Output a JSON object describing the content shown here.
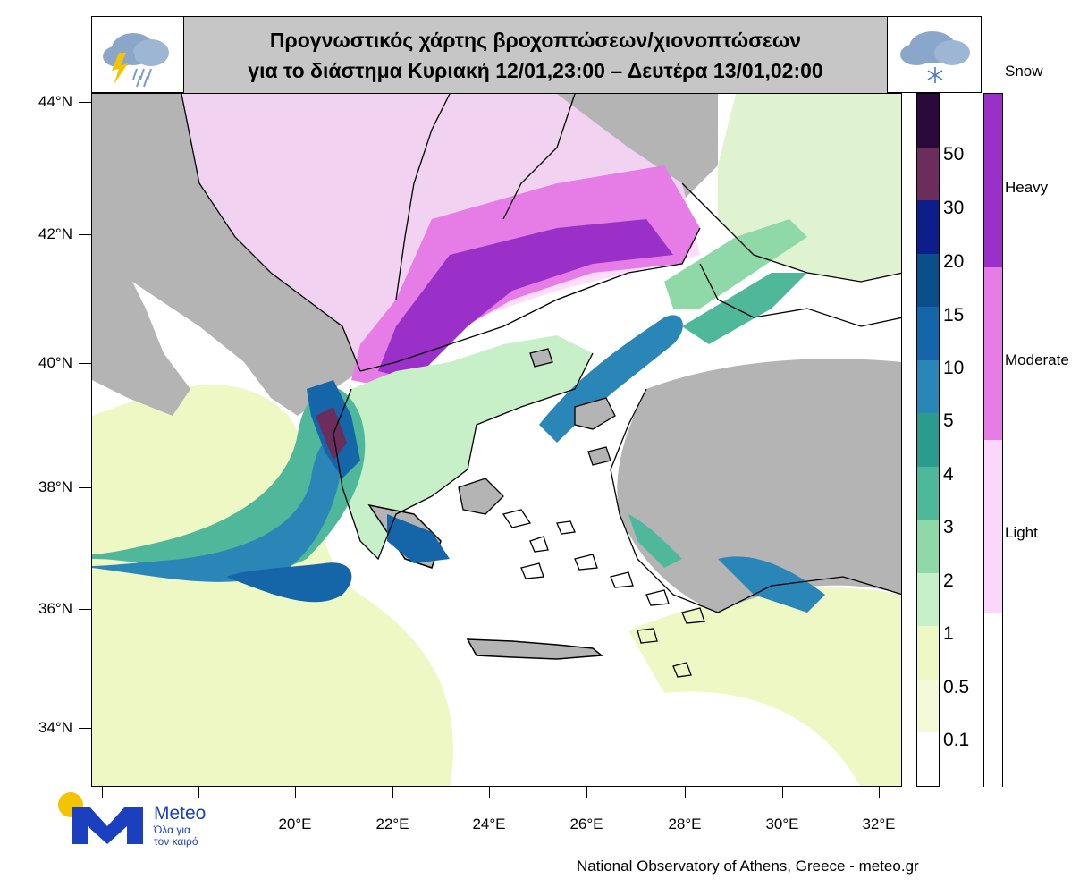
{
  "header": {
    "title_line1": "Προγνωστικός χάρτης βροχοπτώσεων/χιονοπτώσεων",
    "title_line2": "για το διάστημα  Κυριακή 12/01,23:00 – Δευτέρα 13/01,02:00",
    "rain_icon": "rain-thunder-cloud-icon",
    "snow_icon": "snow-cloud-icon"
  },
  "axes": {
    "latitudes": [
      "44°N",
      "42°N",
      "40°N",
      "38°N",
      "36°N",
      "34°N"
    ],
    "longitudes": [
      "20°E",
      "22°E",
      "24°E",
      "26°E",
      "28°E",
      "30°E",
      "32°E"
    ]
  },
  "rain_legend": {
    "labels": [
      "50",
      "30",
      "20",
      "15",
      "10",
      "5",
      "4",
      "3",
      "2",
      "1",
      "0.5",
      "0.1"
    ],
    "colors": [
      "#2a0a3a",
      "#6b2d5c",
      "#0d1e8a",
      "#0a4f8c",
      "#1466a8",
      "#2b86b8",
      "#2a9b8c",
      "#4fb89a",
      "#8fd9a8",
      "#c8f0c8",
      "#eef8c4",
      "#f4f9d8",
      "#ffffff"
    ]
  },
  "snow_legend": {
    "title": "Snow",
    "labels": [
      "Heavy",
      "Moderate",
      "Light"
    ],
    "colors": [
      "#9b30c8",
      "#e67de6",
      "#fcd7fc",
      "#ffffff"
    ]
  },
  "logo": {
    "word": "Meteo",
    "tagline_1": "Όλα για",
    "tagline_2": "τον καιρό"
  },
  "credit": "National Observatory of Athens, Greece - meteo.gr",
  "map_colors": {
    "land_gray": "#b4b4b4",
    "sea": "#ffffff",
    "light_green": "#e8f5c0",
    "mint": "#c8f0c8",
    "green": "#8fd9a8",
    "teal": "#4fb89a",
    "blue": "#2b86b8",
    "dark_blue": "#1466a8",
    "purple": "#9b30c8",
    "pink": "#e67de6",
    "light_pink": "#fcd7fc"
  }
}
